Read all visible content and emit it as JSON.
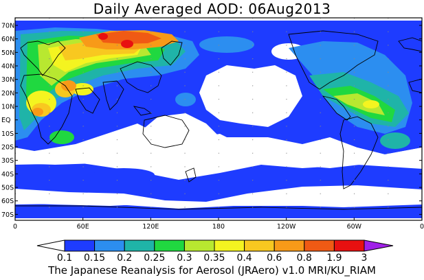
{
  "title": "Daily Averaged AOD: 06Aug2013",
  "footer": "The Japanese Reanalysis for Aerosol (JRAero) v1.0 MRI/KU_RIAM",
  "map": {
    "lat_labels": [
      "70N",
      "60N",
      "50N",
      "40N",
      "30N",
      "20N",
      "10N",
      "EQ",
      "10S",
      "20S",
      "30S",
      "40S",
      "50S",
      "60S",
      "70S"
    ],
    "lon_labels": [
      "0",
      "60E",
      "120E",
      "180",
      "120W",
      "60W",
      "0"
    ],
    "coastline_color": "#000000"
  },
  "colorbar": {
    "labels": [
      "0.1",
      "0.15",
      "0.2",
      "0.25",
      "0.3",
      "0.35",
      "0.4",
      "0.6",
      "0.8",
      "1.9",
      "3"
    ],
    "colors": [
      "#ffffff",
      "#1e3cff",
      "#2c8ef0",
      "#1fb4a8",
      "#20d840",
      "#b8e830",
      "#f4f420",
      "#f8c820",
      "#f89a18",
      "#f05a14",
      "#e81010",
      "#a020e8"
    ]
  },
  "legend": {
    "values": [
      0.1,
      0.15,
      0.2,
      0.25,
      0.3,
      0.35,
      0.4,
      0.6,
      0.8,
      1.9,
      3
    ]
  }
}
